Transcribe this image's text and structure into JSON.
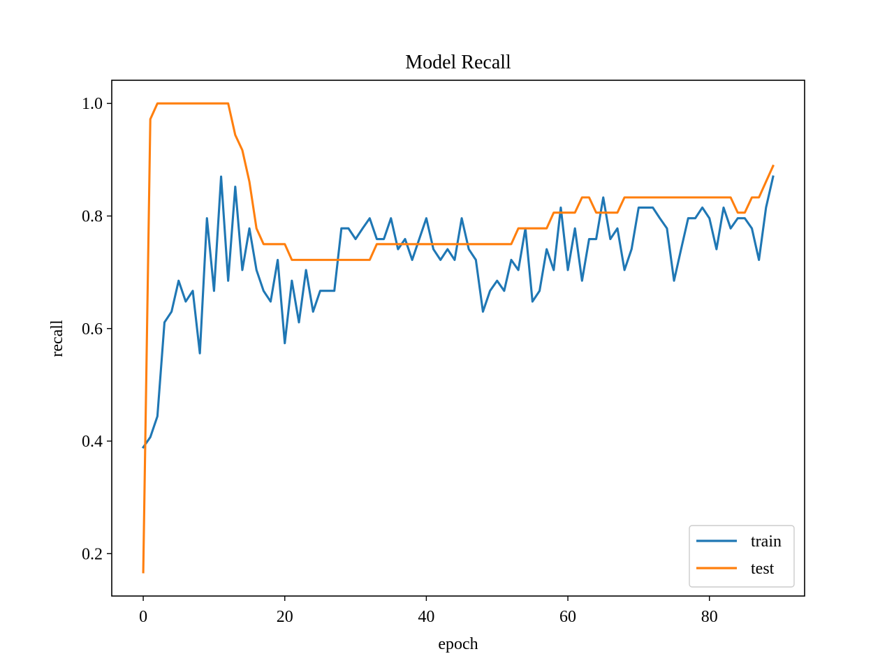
{
  "chart_data": {
    "type": "line",
    "title": "Model Recall",
    "xlabel": "epoch",
    "ylabel": "recall",
    "xlim": [
      -4.45,
      93.45
    ],
    "ylim": [
      0.1247,
      1.0412
    ],
    "xticks": [
      0,
      20,
      40,
      60,
      80
    ],
    "yticks": [
      0.2,
      0.4,
      0.6,
      0.8,
      1.0
    ],
    "xtick_labels": [
      "0",
      "20",
      "40",
      "60",
      "80"
    ],
    "ytick_labels": [
      "0.2",
      "0.4",
      "0.6",
      "0.8",
      "1.0"
    ],
    "grid": false,
    "legend_position": "lower-right",
    "series": [
      {
        "name": "train",
        "color": "#1f77b4",
        "values": [
          0.389,
          0.407,
          0.444,
          0.611,
          0.63,
          0.685,
          0.648,
          0.667,
          0.556,
          0.796,
          0.667,
          0.87,
          0.685,
          0.852,
          0.704,
          0.778,
          0.704,
          0.667,
          0.648,
          0.722,
          0.574,
          0.685,
          0.611,
          0.704,
          0.63,
          0.667,
          0.667,
          0.667,
          0.778,
          0.778,
          0.759,
          0.778,
          0.796,
          0.759,
          0.759,
          0.796,
          0.741,
          0.759,
          0.722,
          0.759,
          0.796,
          0.741,
          0.722,
          0.741,
          0.722,
          0.796,
          0.741,
          0.722,
          0.63,
          0.667,
          0.685,
          0.667,
          0.722,
          0.704,
          0.778,
          0.648,
          0.667,
          0.741,
          0.704,
          0.815,
          0.704,
          0.778,
          0.685,
          0.759,
          0.759,
          0.833,
          0.759,
          0.778,
          0.704,
          0.741,
          0.815,
          0.815,
          0.815,
          0.796,
          0.778,
          0.685,
          0.741,
          0.796,
          0.796,
          0.815,
          0.796,
          0.741,
          0.815,
          0.778,
          0.796,
          0.796,
          0.778,
          0.722,
          0.815,
          0.87
        ]
      },
      {
        "name": "test",
        "color": "#ff7f0e",
        "values": [
          0.167,
          0.972,
          1.0,
          1.0,
          1.0,
          1.0,
          1.0,
          1.0,
          1.0,
          1.0,
          1.0,
          1.0,
          1.0,
          0.944,
          0.917,
          0.861,
          0.778,
          0.75,
          0.75,
          0.75,
          0.75,
          0.722,
          0.722,
          0.722,
          0.722,
          0.722,
          0.722,
          0.722,
          0.722,
          0.722,
          0.722,
          0.722,
          0.722,
          0.75,
          0.75,
          0.75,
          0.75,
          0.75,
          0.75,
          0.75,
          0.75,
          0.75,
          0.75,
          0.75,
          0.75,
          0.75,
          0.75,
          0.75,
          0.75,
          0.75,
          0.75,
          0.75,
          0.75,
          0.778,
          0.778,
          0.778,
          0.778,
          0.778,
          0.806,
          0.806,
          0.806,
          0.806,
          0.833,
          0.833,
          0.806,
          0.806,
          0.806,
          0.806,
          0.833,
          0.833,
          0.833,
          0.833,
          0.833,
          0.833,
          0.833,
          0.833,
          0.833,
          0.833,
          0.833,
          0.833,
          0.833,
          0.833,
          0.833,
          0.833,
          0.806,
          0.806,
          0.833,
          0.833,
          0.861,
          0.889
        ]
      }
    ]
  }
}
